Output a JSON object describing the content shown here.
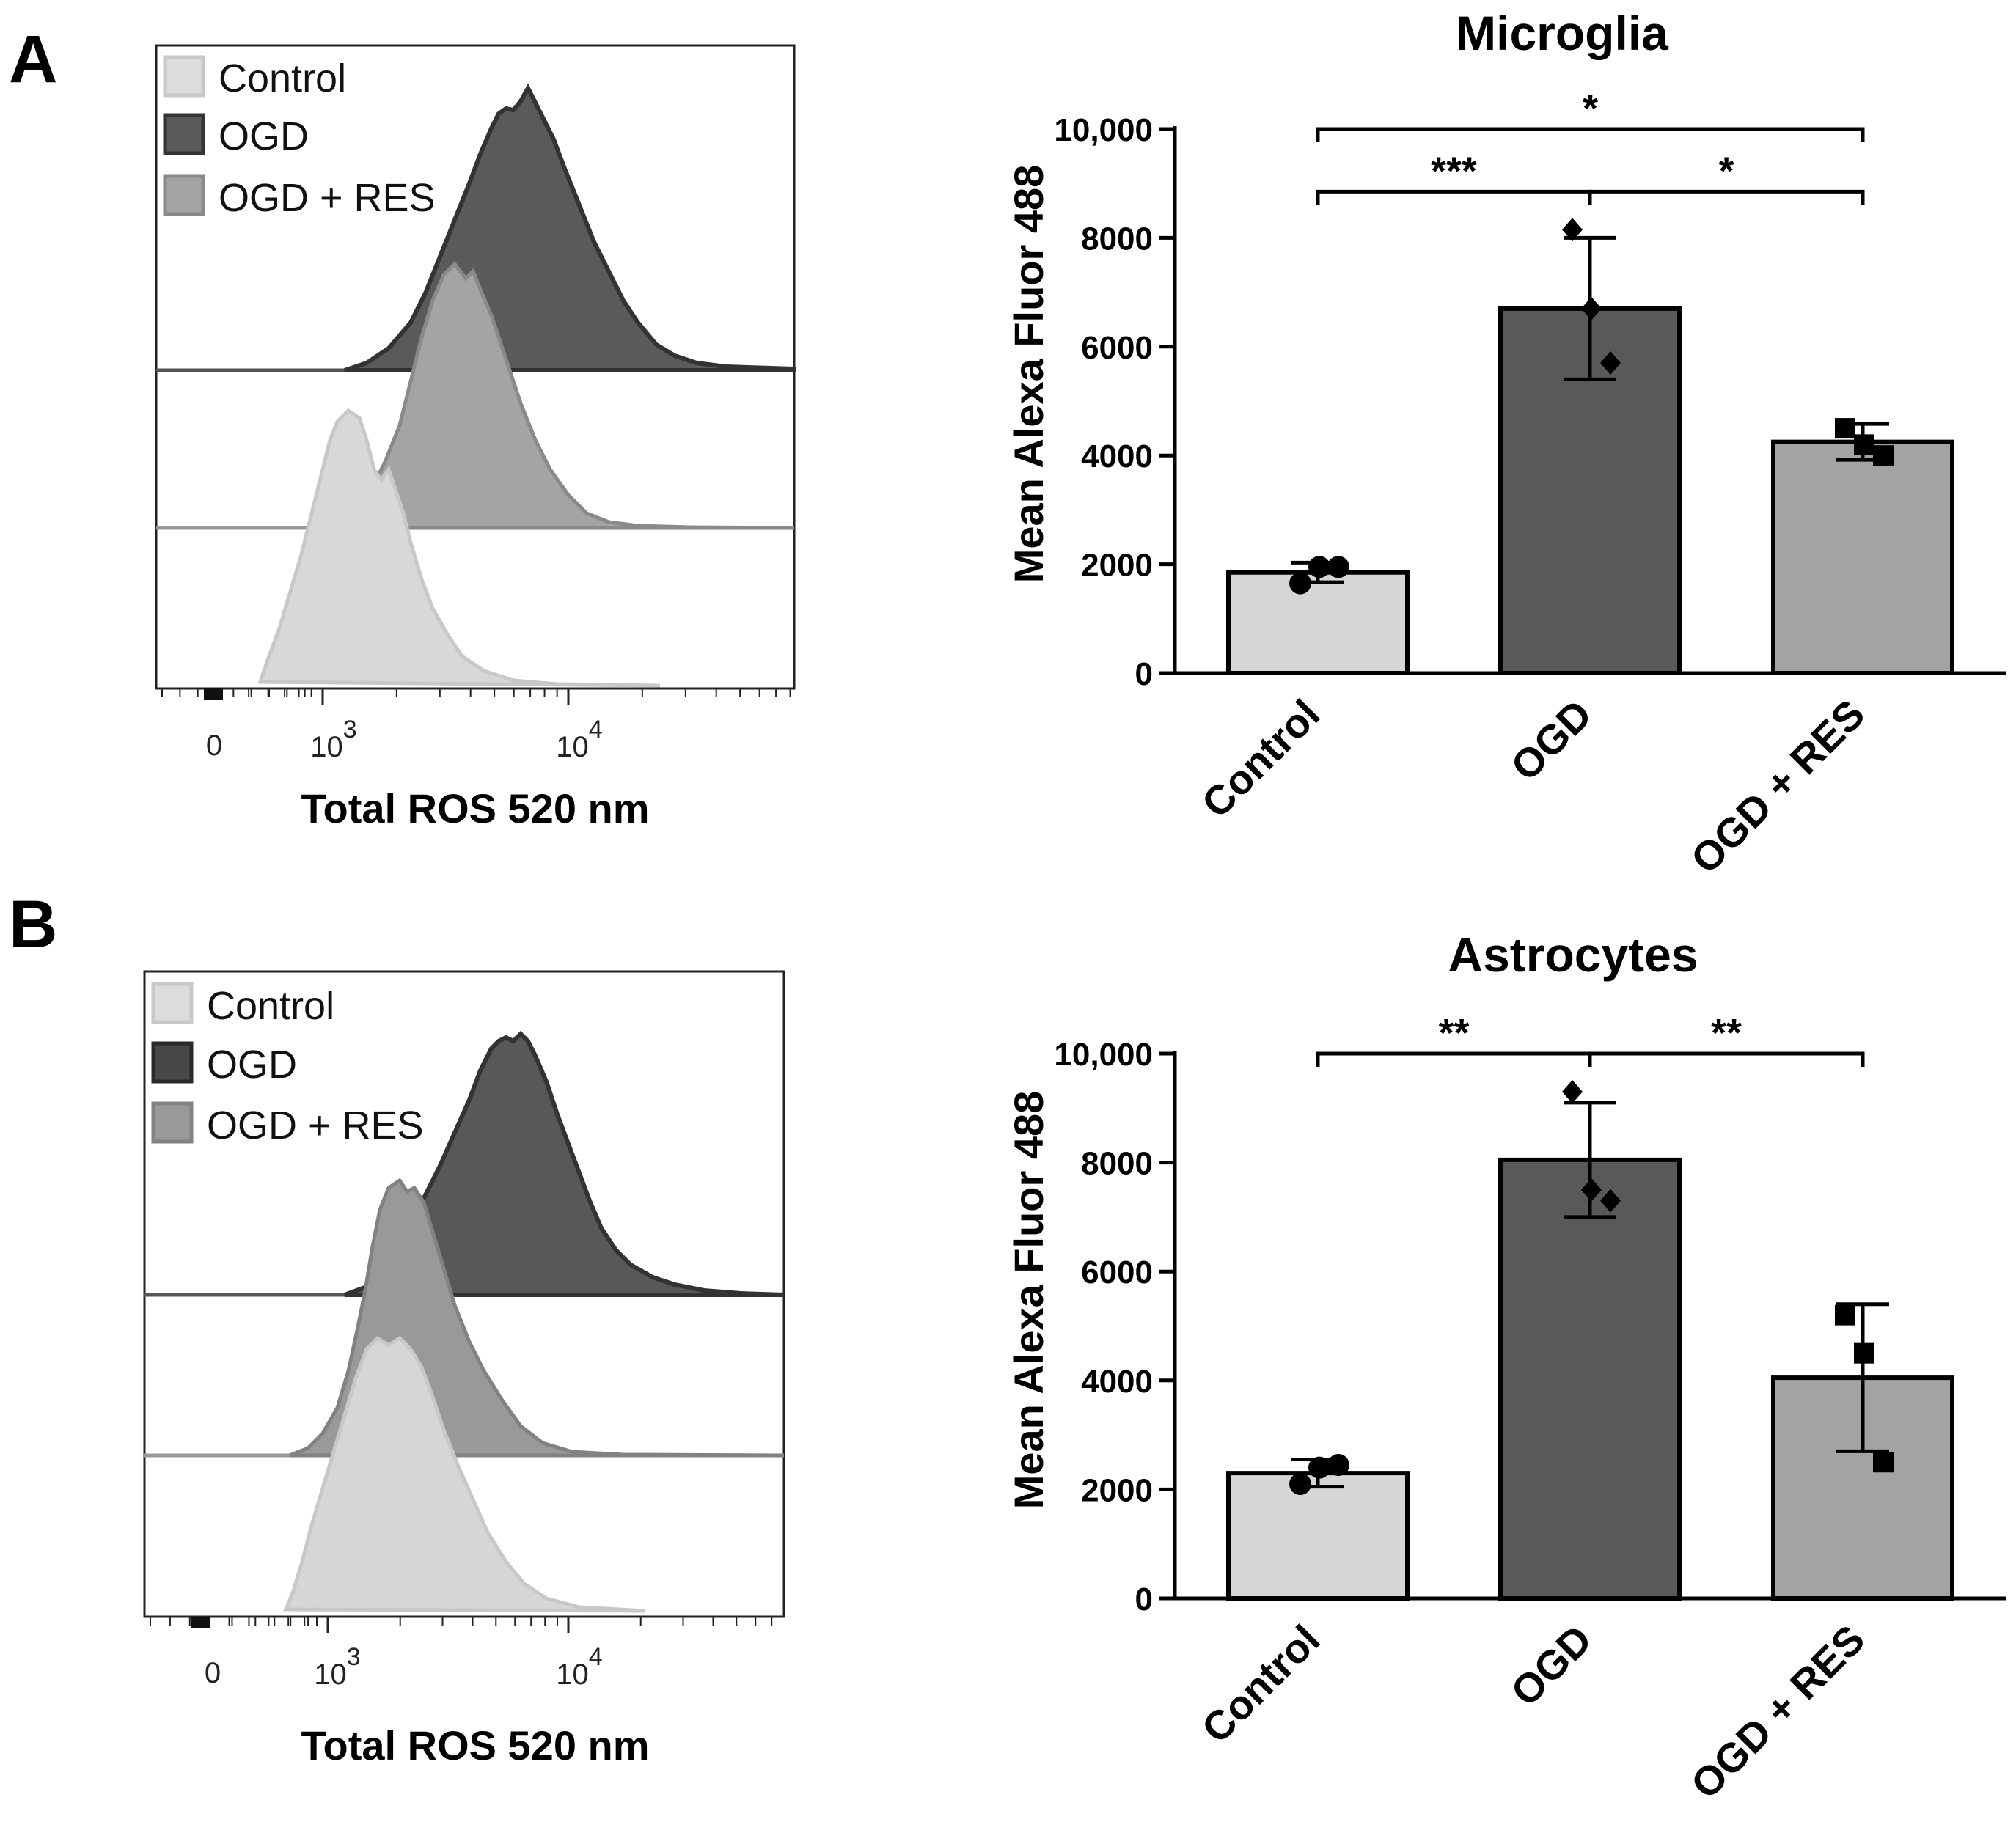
{
  "panels": {
    "A": {
      "letter": "A",
      "histogram": {
        "legend": [
          "Control",
          "OGD",
          "OGD + RES"
        ],
        "xlabel": "Total ROS 520 nm",
        "xticks": [
          {
            "label": "0",
            "exp": ""
          },
          {
            "label": "10",
            "exp": "3"
          },
          {
            "label": "10",
            "exp": "4"
          }
        ]
      }
    },
    "B": {
      "letter": "B",
      "histogram": {
        "legend": [
          "Control",
          "OGD",
          "OGD + RES"
        ],
        "xlabel": "Total ROS 520 nm",
        "xticks": [
          {
            "label": "0",
            "exp": ""
          },
          {
            "label": "10",
            "exp": "3"
          },
          {
            "label": "10",
            "exp": "4"
          }
        ]
      }
    }
  },
  "colors": {
    "control": "#d6d6d6",
    "ogd": "#595959",
    "ogd_res": "#a3a3a3",
    "control_edge": "#c8c8c8",
    "ogd_edge": "#3a3a3a",
    "ogd_res_edge": "#8a8a8a"
  },
  "chart_data": [
    {
      "type": "bar",
      "title": "Microglia",
      "ylabel": "Mean Alexa Fluor 488",
      "xlabel": "",
      "categories": [
        "Control",
        "OGD",
        "OGD + RES"
      ],
      "values": [
        1850,
        6700,
        4250
      ],
      "errors": [
        180,
        1300,
        330
      ],
      "points": [
        [
          1650,
          1950,
          1950
        ],
        [
          8150,
          6700,
          5700
        ],
        [
          4500,
          4200,
          4000
        ]
      ],
      "markers": [
        "circle",
        "diamond",
        "square"
      ],
      "ylim": [
        0,
        10000
      ],
      "yticks": [
        "0",
        "2000",
        "4000",
        "6000",
        "8000",
        "10,000"
      ],
      "significance": [
        {
          "from": 0,
          "to": 2,
          "label": "*",
          "level": 10000
        },
        {
          "from": 0,
          "to": 1,
          "label": "***",
          "level": 8850
        },
        {
          "from": 1,
          "to": 2,
          "label": "*",
          "level": 8850
        }
      ]
    },
    {
      "type": "bar",
      "title": "Astrocytes",
      "ylabel": "Mean Alexa Fluor 488",
      "xlabel": "",
      "categories": [
        "Control",
        "OGD",
        "OGD + RES"
      ],
      "values": [
        2300,
        8050,
        4050
      ],
      "errors": [
        250,
        1050,
        1350
      ],
      "points": [
        [
          2100,
          2400,
          2450
        ],
        [
          9300,
          7500,
          7300
        ],
        [
          5200,
          4500,
          2500
        ]
      ],
      "markers": [
        "circle",
        "diamond",
        "square"
      ],
      "ylim": [
        0,
        10000
      ],
      "yticks": [
        "0",
        "2000",
        "4000",
        "6000",
        "8000",
        "10,000"
      ],
      "significance": [
        {
          "from": 0,
          "to": 1,
          "label": "**",
          "level": 10000
        },
        {
          "from": 1,
          "to": 2,
          "label": "**",
          "level": 10000
        }
      ]
    }
  ]
}
